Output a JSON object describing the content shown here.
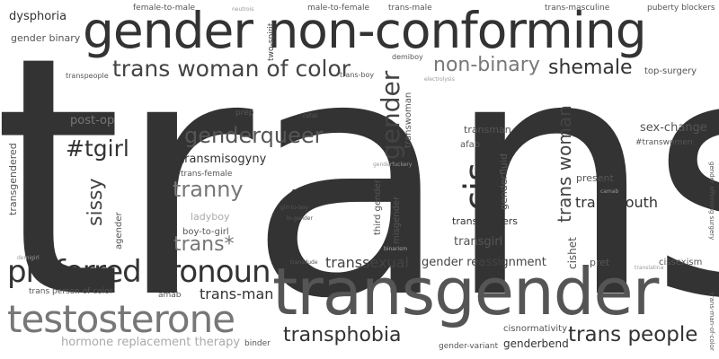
{
  "words": [
    {
      "id": "trans",
      "text": "trans"
    },
    {
      "id": "gender-non-conforming",
      "text": "gender non-conforming"
    },
    {
      "id": "transgender",
      "text": "transgender"
    },
    {
      "id": "testosterone",
      "text": "testosterone"
    },
    {
      "id": "preferred-pronoun",
      "text": "preferred pronoun"
    },
    {
      "id": "trans-woman-of-color",
      "text": "trans woman of color"
    },
    {
      "id": "non-binary",
      "text": "non-binary"
    },
    {
      "id": "shemale",
      "text": "shemale"
    },
    {
      "id": "genderqueer",
      "text": "genderqueer"
    },
    {
      "id": "tgirl",
      "text": "#tgirl"
    },
    {
      "id": "tranny",
      "text": "tranny"
    },
    {
      "id": "trans-star",
      "text": "trans*"
    },
    {
      "id": "trans-people",
      "text": "trans people"
    },
    {
      "id": "transphobia",
      "text": "transphobia"
    },
    {
      "id": "cis",
      "text": "cis"
    },
    {
      "id": "gender-vertical",
      "text": "gender"
    },
    {
      "id": "trans-woman",
      "text": "trans woman"
    },
    {
      "id": "sissy",
      "text": "sissy"
    },
    {
      "id": "trans-youth",
      "text": "trans youth"
    },
    {
      "id": "transsexual",
      "text": "transsexual"
    },
    {
      "id": "trans-man",
      "text": "trans-man"
    },
    {
      "id": "transmisogyny",
      "text": "transmisogyny"
    },
    {
      "id": "gender-reassignment",
      "text": "gender reassignment"
    },
    {
      "id": "hormone-replacement-therapy",
      "text": "hormone replacement therapy"
    },
    {
      "id": "post-op",
      "text": "post-op"
    },
    {
      "id": "sex-change",
      "text": "sex-change"
    },
    {
      "id": "dysphoria",
      "text": "dysphoria"
    },
    {
      "id": "gender-binary",
      "text": "gender binary"
    },
    {
      "id": "female-to-male",
      "text": "female-to-male"
    },
    {
      "id": "neutrois",
      "text": "neutrois"
    },
    {
      "id": "male-to-female",
      "text": "male-to-female"
    },
    {
      "id": "trans-male",
      "text": "trans-male"
    },
    {
      "id": "trans-masculine",
      "text": "trans-masculine"
    },
    {
      "id": "puberty-blockers",
      "text": "puberty blockers"
    },
    {
      "id": "two-spirit",
      "text": "two-spirit"
    },
    {
      "id": "demiboy",
      "text": "demiboy"
    },
    {
      "id": "top-surgery",
      "text": "top-surgery"
    },
    {
      "id": "transpeople",
      "text": "transpeople"
    },
    {
      "id": "trans-boy",
      "text": "trans-boy"
    },
    {
      "id": "electrolysis",
      "text": "electrolysis"
    },
    {
      "id": "transwoman",
      "text": "transwoman"
    },
    {
      "id": "prep",
      "text": "prep"
    },
    {
      "id": "cafab",
      "text": "cafab"
    },
    {
      "id": "transman",
      "text": "transman"
    },
    {
      "id": "transwomen",
      "text": "#transwomen"
    },
    {
      "id": "transgendered",
      "text": "transgendered"
    },
    {
      "id": "afab",
      "text": "afab"
    },
    {
      "id": "trans-female",
      "text": "trans-female"
    },
    {
      "id": "genderfuckery",
      "text": "genderfuckery"
    },
    {
      "id": "genderfluid",
      "text": "genderfluid"
    },
    {
      "id": "present",
      "text": "present"
    },
    {
      "id": "femboy",
      "text": "femboy"
    },
    {
      "id": "camab",
      "text": "camab"
    },
    {
      "id": "girl-to-boy",
      "text": "girl-to-boy"
    },
    {
      "id": "bi-gender",
      "text": "bi-gender"
    },
    {
      "id": "third-gender",
      "text": "third gender"
    },
    {
      "id": "misgender",
      "text": "misgender"
    },
    {
      "id": "gender-affirming-surgery",
      "text": "gender affirming surgery"
    },
    {
      "id": "ladyboy",
      "text": "ladyboy"
    },
    {
      "id": "transgenders",
      "text": "transgenders"
    },
    {
      "id": "boy-to-girl",
      "text": "boy-to-girl"
    },
    {
      "id": "agender",
      "text": "agender"
    },
    {
      "id": "transgirl",
      "text": "transgirl"
    },
    {
      "id": "binarism",
      "text": "binarism"
    },
    {
      "id": "cishet",
      "text": "cishet"
    },
    {
      "id": "demigirl",
      "text": "demigirl"
    },
    {
      "id": "pret",
      "text": "pret"
    },
    {
      "id": "translatina",
      "text": "translatina"
    },
    {
      "id": "cissexism",
      "text": "cissexism"
    },
    {
      "id": "transdude",
      "text": "transdude"
    },
    {
      "id": "trans-person-of-color",
      "text": "trans person of color"
    },
    {
      "id": "amab",
      "text": "amab"
    },
    {
      "id": "trans-man-of-color",
      "text": "trans-man-of-color"
    },
    {
      "id": "cisnormativity",
      "text": "cisnormativity"
    },
    {
      "id": "binder",
      "text": "binder"
    },
    {
      "id": "gender-variant",
      "text": "gender-variant"
    },
    {
      "id": "genderbend",
      "text": "genderbend"
    }
  ]
}
